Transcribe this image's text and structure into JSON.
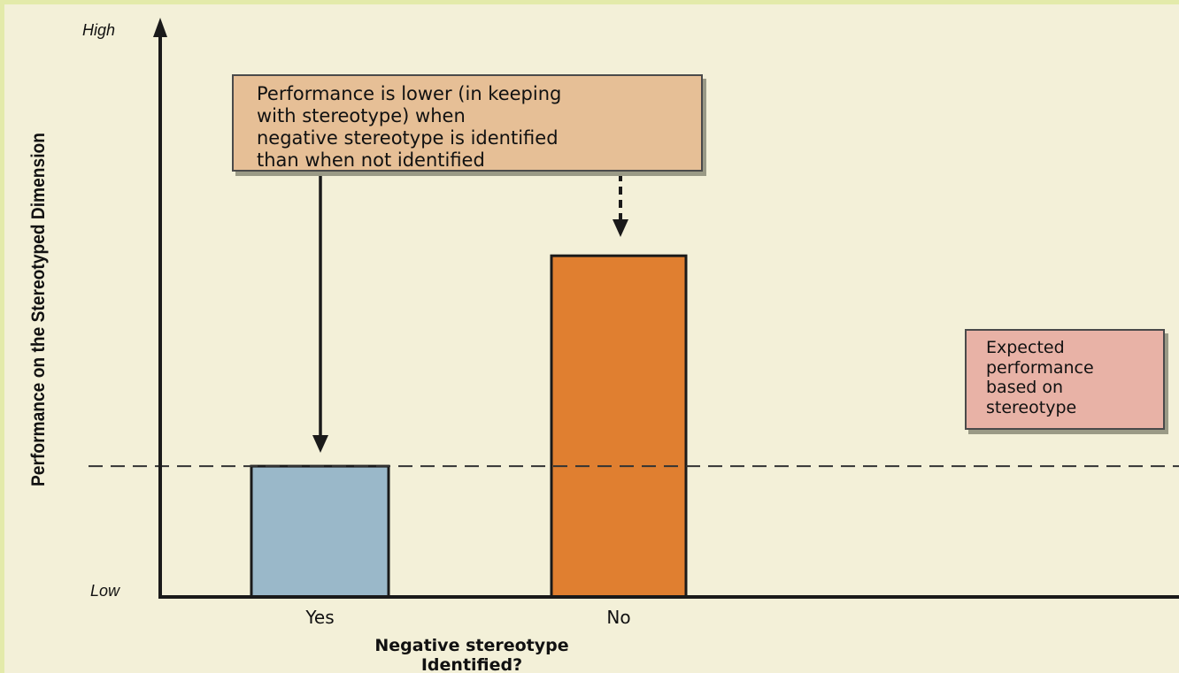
{
  "chart_data": {
    "type": "bar",
    "categories": [
      "Yes",
      "No"
    ],
    "values": [
      0.23,
      0.6
    ],
    "value_scale": "relative (Low = 0, High = 1)",
    "bar_colors": [
      "#9ab8c9",
      "#e07f30"
    ],
    "xlabel": "Negative stereotype\nIdentified?",
    "ylabel": "Performance on the Stereotyped Dimension",
    "ylim": [
      0,
      1
    ],
    "y_tick_labels": {
      "high": "High",
      "low": "Low"
    },
    "reference_line": {
      "value": 0.23,
      "style": "dashed"
    },
    "grid": false,
    "legend": "none"
  },
  "annotations": {
    "main": "Performance is lower (in keeping\nwith stereotype) when\nnegative stereotype is identified\nthan when not identified",
    "expected": "Expected\nperformance\nbased on\nstereotype"
  },
  "colors": {
    "background": "#f3f0d8",
    "main_note": "#e6bf96",
    "expected_note": "#e8b2a6",
    "axis": "#1a1a1a"
  }
}
